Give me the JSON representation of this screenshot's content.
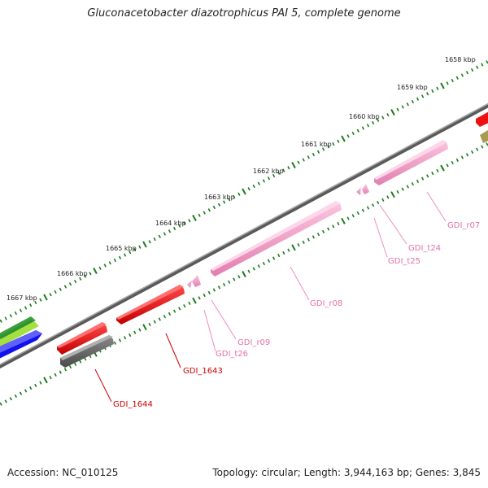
{
  "title": "Gluconacetobacter diazotrophicus PAI 5, complete genome",
  "footer": {
    "accession": "Accession: NC_010125",
    "stats": "Topology: circular; Length: 3,944,163 bp; Genes: 3,845"
  },
  "scale_labels": [
    "1658 kbp",
    "1659 kbp",
    "1660 kbp",
    "1661 kbp",
    "1662 kbp",
    "1663 kbp",
    "1664 kbp",
    "1665 kbp",
    "1666 kbp",
    "1667 kbp"
  ],
  "features": [
    {
      "label": "GDI_r07",
      "type": "rRNA",
      "color": "#f08cbe"
    },
    {
      "label": "GDI_t24",
      "type": "tRNA",
      "color": "#f08cbe"
    },
    {
      "label": "GDI_t25",
      "type": "tRNA",
      "color": "#f08cbe"
    },
    {
      "label": "GDI_r08",
      "type": "rRNA",
      "color": "#f08cbe"
    },
    {
      "label": "GDI_r09",
      "type": "rRNA",
      "color": "#f08cbe"
    },
    {
      "label": "GDI_t26",
      "type": "tRNA",
      "color": "#f08cbe"
    },
    {
      "label": "GDI_1643",
      "type": "CDS",
      "color": "#cc0000"
    },
    {
      "label": "GDI_1644",
      "type": "CDS",
      "color": "#cc0000"
    }
  ],
  "colors": {
    "backbone": "#888888",
    "ticks": "#1a7a1a",
    "cds_red": "#ee1111",
    "rna_pink": "#f8a0cc",
    "gray_gene": "#666666",
    "blue_gene": "#1111ee",
    "green_gene": "#2a8a2a",
    "lime_gene": "#99dd33",
    "olive_gene": "#a89a50"
  }
}
